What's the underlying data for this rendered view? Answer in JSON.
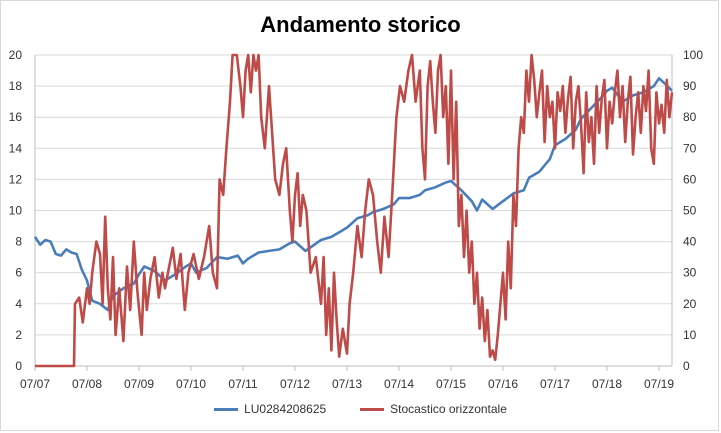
{
  "chart_data": {
    "type": "line",
    "title": "Andamento storico",
    "x_tick_labels": [
      "07/07",
      "07/08",
      "07/09",
      "07/10",
      "07/11",
      "07/12",
      "07/13",
      "07/14",
      "07/15",
      "07/16",
      "07/17",
      "07/18",
      "07/19"
    ],
    "xlim": [
      2007.5,
      2019.75
    ],
    "y_left": {
      "lim": [
        0,
        20
      ],
      "ticks": [
        "0",
        "2",
        "4",
        "6",
        "8",
        "10",
        "12",
        "14",
        "16",
        "18",
        "20"
      ]
    },
    "y_right": {
      "lim": [
        0,
        100
      ],
      "ticks": [
        "0",
        "10",
        "20",
        "30",
        "40",
        "50",
        "60",
        "70",
        "80",
        "90",
        "100"
      ]
    },
    "grid": true,
    "legend_position": "bottom",
    "colors": {
      "LU0284208625": "#4a7ebb",
      "Stocastico orizzontale": "#be4b48"
    },
    "series": [
      {
        "name": "LU0284208625",
        "axis": "left",
        "x": [
          2007.5,
          2007.6,
          2007.7,
          2007.8,
          2007.9,
          2008.0,
          2008.1,
          2008.2,
          2008.3,
          2008.4,
          2008.5,
          2008.6,
          2008.75,
          2008.9,
          2009.0,
          2009.2,
          2009.4,
          2009.5,
          2009.6,
          2009.8,
          2010.0,
          2010.2,
          2010.4,
          2010.5,
          2010.6,
          2010.8,
          2011.0,
          2011.2,
          2011.4,
          2011.5,
          2011.6,
          2011.8,
          2012.0,
          2012.2,
          2012.4,
          2012.5,
          2012.7,
          2013.0,
          2013.2,
          2013.4,
          2013.5,
          2013.7,
          2013.9,
          2014.0,
          2014.2,
          2014.4,
          2014.5,
          2014.7,
          2014.9,
          2015.0,
          2015.2,
          2015.4,
          2015.5,
          2015.7,
          2015.9,
          2016.0,
          2016.1,
          2016.3,
          2016.5,
          2016.7,
          2016.9,
          2017.0,
          2017.2,
          2017.4,
          2017.5,
          2017.7,
          2017.9,
          2018.0,
          2018.2,
          2018.4,
          2018.5,
          2018.6,
          2018.8,
          2019.0,
          2019.2,
          2019.4,
          2019.5,
          2019.6,
          2019.75
        ],
        "values": [
          8.3,
          7.8,
          8.1,
          8.0,
          7.2,
          7.1,
          7.5,
          7.3,
          7.2,
          6.2,
          5.5,
          4.2,
          4.0,
          3.6,
          4.5,
          5.0,
          5.3,
          5.9,
          6.4,
          6.1,
          5.5,
          5.9,
          6.4,
          6.6,
          6.0,
          6.3,
          7.0,
          6.9,
          7.1,
          6.6,
          6.9,
          7.3,
          7.4,
          7.5,
          7.9,
          8.0,
          7.4,
          8.1,
          8.3,
          8.7,
          8.9,
          9.5,
          9.7,
          9.9,
          10.1,
          10.4,
          10.8,
          10.8,
          11.0,
          11.3,
          11.5,
          11.8,
          11.9,
          11.3,
          10.6,
          10.0,
          10.7,
          10.1,
          10.6,
          11.1,
          11.3,
          12.1,
          12.5,
          13.3,
          14.2,
          14.6,
          15.2,
          15.9,
          16.6,
          17.3,
          17.7,
          17.9,
          17.0,
          17.4,
          17.6,
          18.0,
          18.5,
          18.2,
          17.7
        ]
      },
      {
        "name": "Stocastico orizzontale",
        "axis": "right",
        "x": [
          2007.5,
          2008.0,
          2008.25,
          2008.27,
          2008.35,
          2008.42,
          2008.5,
          2008.55,
          2008.6,
          2008.68,
          2008.75,
          2008.8,
          2008.85,
          2008.9,
          2008.95,
          2009.0,
          2009.05,
          2009.12,
          2009.2,
          2009.27,
          2009.33,
          2009.4,
          2009.47,
          2009.55,
          2009.6,
          2009.65,
          2009.72,
          2009.8,
          2009.88,
          2009.95,
          2010.0,
          2010.08,
          2010.15,
          2010.22,
          2010.3,
          2010.38,
          2010.45,
          2010.55,
          2010.65,
          2010.75,
          2010.85,
          2010.92,
          2011.0,
          2011.05,
          2011.12,
          2011.18,
          2011.25,
          2011.3,
          2011.38,
          2011.45,
          2011.5,
          2011.55,
          2011.6,
          2011.65,
          2011.7,
          2011.75,
          2011.8,
          2011.85,
          2011.92,
          2012.0,
          2012.06,
          2012.12,
          2012.2,
          2012.27,
          2012.33,
          2012.4,
          2012.45,
          2012.5,
          2012.55,
          2012.6,
          2012.65,
          2012.72,
          2012.8,
          2012.9,
          2013.0,
          2013.05,
          2013.1,
          2013.15,
          2013.2,
          2013.25,
          2013.3,
          2013.35,
          2013.42,
          2013.5,
          2013.55,
          2013.62,
          2013.7,
          2013.78,
          2013.85,
          2013.92,
          2014.0,
          2014.08,
          2014.15,
          2014.22,
          2014.3,
          2014.37,
          2014.45,
          2014.52,
          2014.6,
          2014.68,
          2014.75,
          2014.82,
          2014.9,
          2014.95,
          2015.0,
          2015.05,
          2015.1,
          2015.15,
          2015.2,
          2015.25,
          2015.3,
          2015.35,
          2015.4,
          2015.45,
          2015.5,
          2015.55,
          2015.6,
          2015.65,
          2015.7,
          2015.75,
          2015.8,
          2015.85,
          2015.9,
          2015.95,
          2016.0,
          2016.05,
          2016.1,
          2016.15,
          2016.2,
          2016.25,
          2016.3,
          2016.35,
          2016.4,
          2016.45,
          2016.5,
          2016.55,
          2016.6,
          2016.65,
          2016.7,
          2016.75,
          2016.8,
          2016.85,
          2016.9,
          2016.95,
          2017.0,
          2017.05,
          2017.1,
          2017.15,
          2017.2,
          2017.25,
          2017.3,
          2017.35,
          2017.4,
          2017.45,
          2017.5,
          2017.55,
          2017.6,
          2017.65,
          2017.7,
          2017.75,
          2017.8,
          2017.85,
          2017.9,
          2017.95,
          2018.0,
          2018.05,
          2018.1,
          2018.15,
          2018.2,
          2018.25,
          2018.3,
          2018.35,
          2018.4,
          2018.45,
          2018.5,
          2018.55,
          2018.6,
          2018.65,
          2018.7,
          2018.75,
          2018.8,
          2018.85,
          2018.9,
          2018.95,
          2019.0,
          2019.05,
          2019.1,
          2019.15,
          2019.2,
          2019.25,
          2019.3,
          2019.35,
          2019.4,
          2019.45,
          2019.5,
          2019.55,
          2019.6,
          2019.65,
          2019.7,
          2019.75
        ],
        "values": [
          0,
          0,
          0,
          20,
          22,
          14,
          25,
          20,
          30,
          40,
          36,
          20,
          48,
          25,
          15,
          35,
          10,
          25,
          8,
          32,
          18,
          40,
          24,
          10,
          30,
          18,
          28,
          35,
          22,
          30,
          25,
          32,
          38,
          28,
          36,
          18,
          30,
          36,
          28,
          35,
          45,
          30,
          25,
          60,
          55,
          70,
          85,
          100,
          100,
          90,
          80,
          95,
          100,
          88,
          100,
          95,
          100,
          80,
          70,
          90,
          75,
          60,
          55,
          65,
          70,
          50,
          40,
          55,
          62,
          45,
          55,
          50,
          30,
          35,
          20,
          35,
          10,
          25,
          5,
          30,
          15,
          3,
          12,
          4,
          20,
          30,
          45,
          35,
          50,
          60,
          55,
          40,
          30,
          48,
          35,
          55,
          80,
          90,
          85,
          95,
          100,
          85,
          95,
          70,
          60,
          90,
          98,
          85,
          75,
          95,
          100,
          80,
          90,
          65,
          95,
          60,
          85,
          45,
          55,
          35,
          50,
          30,
          40,
          20,
          30,
          12,
          22,
          8,
          18,
          3,
          5,
          2,
          10,
          20,
          30,
          15,
          40,
          25,
          55,
          45,
          70,
          80,
          75,
          95,
          85,
          100,
          92,
          80,
          88,
          95,
          72,
          90,
          80,
          85,
          70,
          88,
          82,
          90,
          75,
          86,
          93,
          70,
          85,
          90,
          78,
          62,
          88,
          72,
          80,
          65,
          90,
          75,
          86,
          92,
          70,
          85,
          78,
          88,
          95,
          80,
          90,
          72,
          85,
          93,
          68,
          80,
          88,
          75,
          90,
          82,
          95,
          70,
          65,
          88,
          78,
          84,
          75,
          92,
          80,
          88
        ]
      }
    ]
  },
  "legend": {
    "items": [
      "LU0284208625",
      "Stocastico orizzontale"
    ]
  }
}
